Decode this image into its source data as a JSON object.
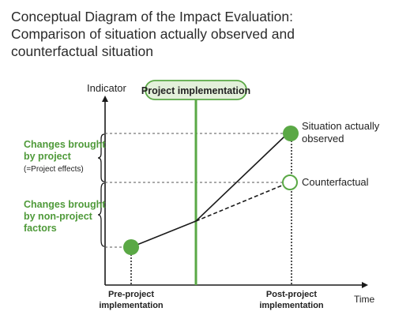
{
  "title": {
    "line1": "Conceptual Diagram of the Impact Evaluation:",
    "line2": "Comparison of situation actually observed and",
    "line3": "counterfactual situation"
  },
  "axes": {
    "y_label": "Indicator",
    "x_label": "Time"
  },
  "implementation_label": "Project implementation",
  "left_labels": {
    "project_line1": "Changes brought",
    "project_line2": "by project",
    "project_note": "(=Project effects)",
    "nonproject_line1": "Changes brought",
    "nonproject_line2": "by non-project",
    "nonproject_line3": "factors"
  },
  "point_labels": {
    "observed_line1": "Situation actually",
    "observed_line2": "observed",
    "counterfactual": "Counterfactual"
  },
  "x_ticks": {
    "pre_line1": "Pre-project",
    "pre_line2": "implementation",
    "post_line1": "Post-project",
    "post_line2": "implementation"
  },
  "colors": {
    "green": "#5aa845",
    "green_text": "#4f9a3a",
    "label_bg": "#e3f0da",
    "line": "#1a1a1a"
  }
}
